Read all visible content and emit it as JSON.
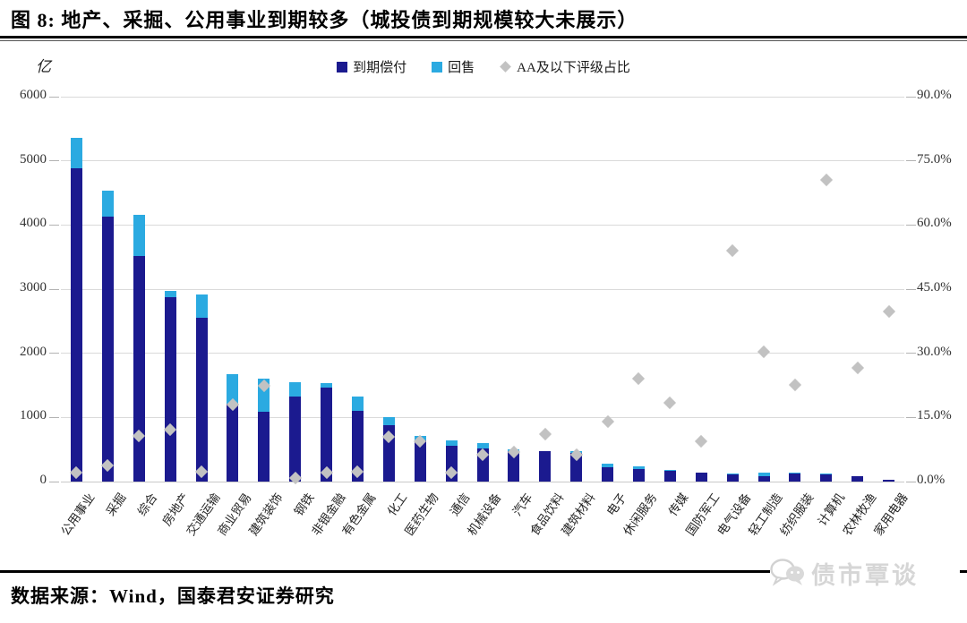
{
  "header": {
    "title": "图 8:  地产、采掘、公用事业到期较多（城投债到期规模较大未展示）"
  },
  "footer": {
    "source": "数据来源：Wind，国泰君安证券研究",
    "watermark_brand": "债市覃谈"
  },
  "chart_data": {
    "type": "bar",
    "subtype": "stacked-bars-with-diamond-scatter-overlay-dual-axis",
    "title": "",
    "unit_label": "亿",
    "categories": [
      "公用事业",
      "采掘",
      "综合",
      "房地产",
      "交通运输",
      "商业贸易",
      "建筑装饰",
      "钢铁",
      "非银金融",
      "有色金属",
      "化工",
      "医药生物",
      "通信",
      "机械设备",
      "汽车",
      "食品饮料",
      "建筑材料",
      "电子",
      "休闲服务",
      "传媒",
      "国防军工",
      "电气设备",
      "轻工制造",
      "纺织服装",
      "计算机",
      "农林牧渔",
      "家用电器"
    ],
    "series": [
      {
        "name": "到期偿付",
        "type": "bar",
        "stack": "total",
        "axis": "left",
        "color": "#1b1a8f",
        "values": [
          4880,
          4130,
          3520,
          2870,
          2550,
          1220,
          1090,
          1320,
          1460,
          1100,
          880,
          640,
          560,
          515,
          480,
          480,
          450,
          230,
          190,
          165,
          145,
          105,
          85,
          125,
          105,
          90,
          35
        ]
      },
      {
        "name": "回售",
        "type": "bar",
        "stack": "total",
        "axis": "left",
        "color": "#2baae1",
        "values": [
          480,
          410,
          640,
          100,
          370,
          460,
          510,
          230,
          70,
          230,
          120,
          75,
          80,
          85,
          20,
          0,
          20,
          55,
          50,
          10,
          0,
          20,
          50,
          20,
          15,
          0,
          0
        ]
      },
      {
        "name": "AA及以下评级占比",
        "type": "scatter-diamond",
        "axis": "right",
        "color": "#c2c2c2",
        "values_percent": [
          2.2,
          3.7,
          10.7,
          12.1,
          2.3,
          18.1,
          22.3,
          0.8,
          2.1,
          2.4,
          10.5,
          9.4,
          2.0,
          6.3,
          7.0,
          11.0,
          6.3,
          14.0,
          24.0,
          18.4,
          9.5,
          54.1,
          30.3,
          22.6,
          70.5,
          26.6,
          39.7
        ]
      }
    ],
    "left_axis": {
      "label": "亿",
      "min": 0,
      "max": 6000,
      "tick_step": 1000,
      "ticks": [
        "0",
        "1000",
        "2000",
        "3000",
        "4000",
        "5000",
        "6000"
      ]
    },
    "right_axis": {
      "min": 0,
      "max": 90,
      "tick_step": 15,
      "ticks": [
        "0.0%",
        "15.0%",
        "30.0%",
        "45.0%",
        "60.0%",
        "75.0%",
        "90.0%"
      ]
    },
    "grid": true,
    "legend_position": "top-center"
  }
}
